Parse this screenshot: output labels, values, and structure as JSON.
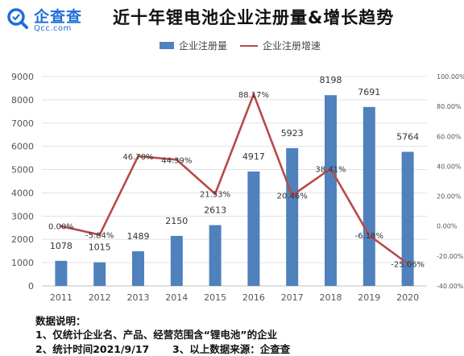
{
  "logo": {
    "name": "企查查",
    "domain": "Qcc.com",
    "brand_color": "#1e6fd8"
  },
  "title": "近十年锂电池企业注册量&增长趋势",
  "legend": {
    "bar_label": "企业注册量",
    "line_label": "企业注册增速"
  },
  "colors": {
    "bar": "#4f81bd",
    "line": "#b84a48",
    "grid": "#e3e3e3",
    "axis_text": "#555555"
  },
  "chart_data": {
    "type": "bar",
    "categories": [
      "2011",
      "2012",
      "2013",
      "2014",
      "2015",
      "2016",
      "2017",
      "2018",
      "2019",
      "2020"
    ],
    "series": [
      {
        "name": "企业注册量",
        "type": "bar",
        "axis": "left",
        "values": [
          1078,
          1015,
          1489,
          2150,
          2613,
          4917,
          5923,
          8198,
          7691,
          5764
        ],
        "labels": [
          "1078",
          "1015",
          "1489",
          "2150",
          "2613",
          "4917",
          "5923",
          "8198",
          "7691",
          "5764"
        ]
      },
      {
        "name": "企业注册增速",
        "type": "line",
        "axis": "right",
        "values": [
          0.0,
          -5.84,
          46.7,
          44.39,
          21.53,
          88.17,
          20.46,
          38.41,
          -6.18,
          -25.06
        ],
        "labels": [
          "0.00%",
          "-5.84%",
          "46.70%",
          "44.39%",
          "21.53%",
          "88.17%",
          "20.46%",
          "38.41%",
          "-6.18%",
          "-25.06%"
        ]
      }
    ],
    "left_axis": {
      "min": 0,
      "max": 9000,
      "ticks": [
        "0",
        "1000",
        "2000",
        "3000",
        "4000",
        "5000",
        "6000",
        "7000",
        "8000",
        "9000"
      ]
    },
    "right_axis": {
      "min": -40,
      "max": 100,
      "ticks": [
        "-40.00%",
        "-20.00%",
        "0.00%",
        "20.00%",
        "40.00%",
        "60.00%",
        "80.00%",
        "100.00%"
      ]
    },
    "grid": true,
    "legend_position": "top"
  },
  "notes": {
    "heading": "数据说明：",
    "line1": "1、仅统计企业名、产品、经营范围含“锂电池”的企业",
    "line2a": "2、统计时间2021/9/17",
    "line2b": "3、以上数据来源：企查查"
  }
}
